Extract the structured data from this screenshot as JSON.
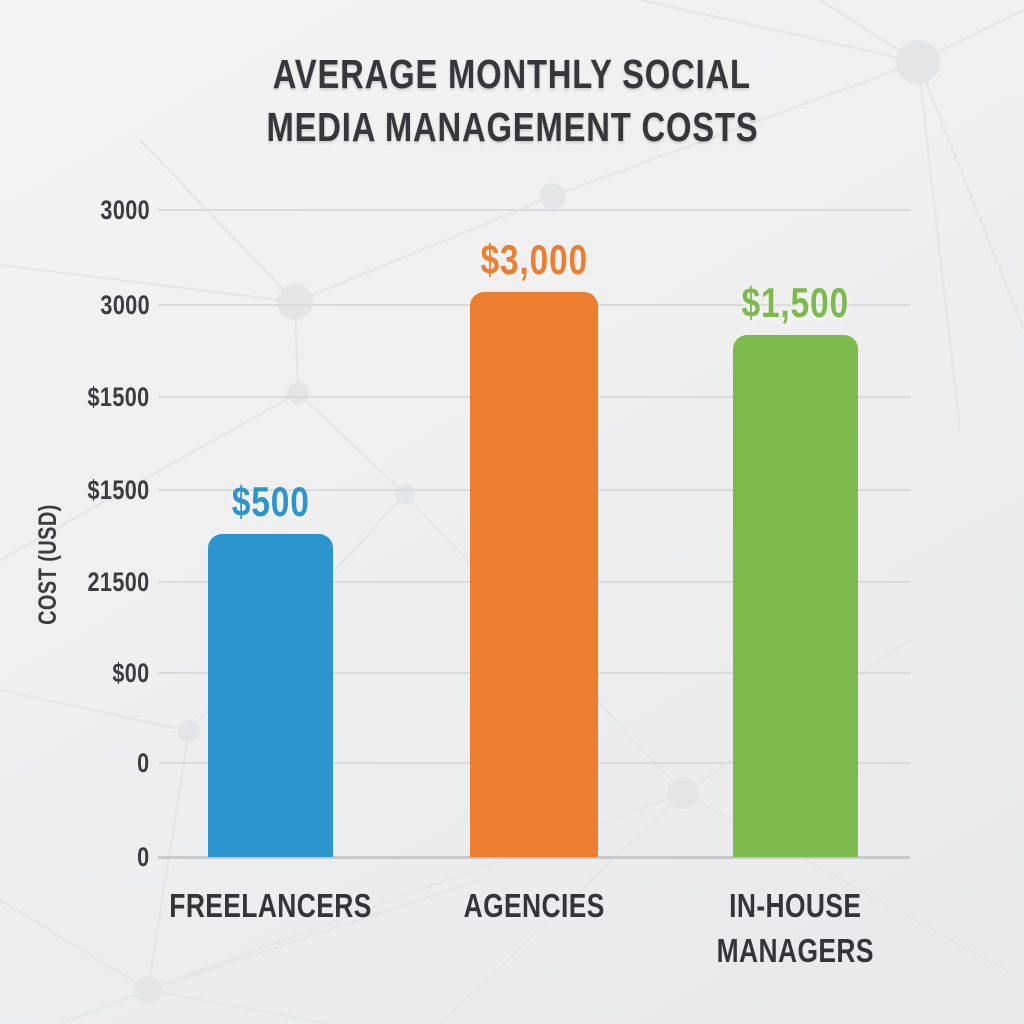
{
  "title_lines": [
    "AVERAGE MONTHLY SOCIAL",
    "MEDIA MANAGEMENT COSTS"
  ],
  "chart_data": {
    "type": "bar",
    "title": "AVERAGE MONTHLY SOCIAL MEDIA MANAGEMENT COSTS",
    "ylabel": "COST (USD)",
    "xlabel": "",
    "categories": [
      "FREELANCERS",
      "AGENCIES",
      "IN-HOUSE MANAGERS"
    ],
    "category_display": [
      "FREELANCERS",
      "AGENCIES",
      "IN-HOUSE\nMANAGERS"
    ],
    "values": [
      500,
      3000,
      1500
    ],
    "value_labels": [
      "$500",
      "$3,000",
      "$1,500"
    ],
    "bar_colors": [
      "#2d95cd",
      "#ee7e2f",
      "#7cba4d"
    ],
    "value_label_colors": [
      "#2d95cd",
      "#ee7e2f",
      "#7cba4d"
    ],
    "y_tick_labels_top_to_bottom": [
      "3000",
      "3000",
      "$1500",
      "$1500",
      "21500",
      "$00",
      "0",
      "0"
    ],
    "ylim": [
      0,
      3500
    ],
    "grid": true,
    "legend": false,
    "text_color": "#35373a",
    "gridline_color": "#d9dbdc",
    "axis_line_color": "#c7c9cb",
    "background_color": "#efeff0"
  }
}
